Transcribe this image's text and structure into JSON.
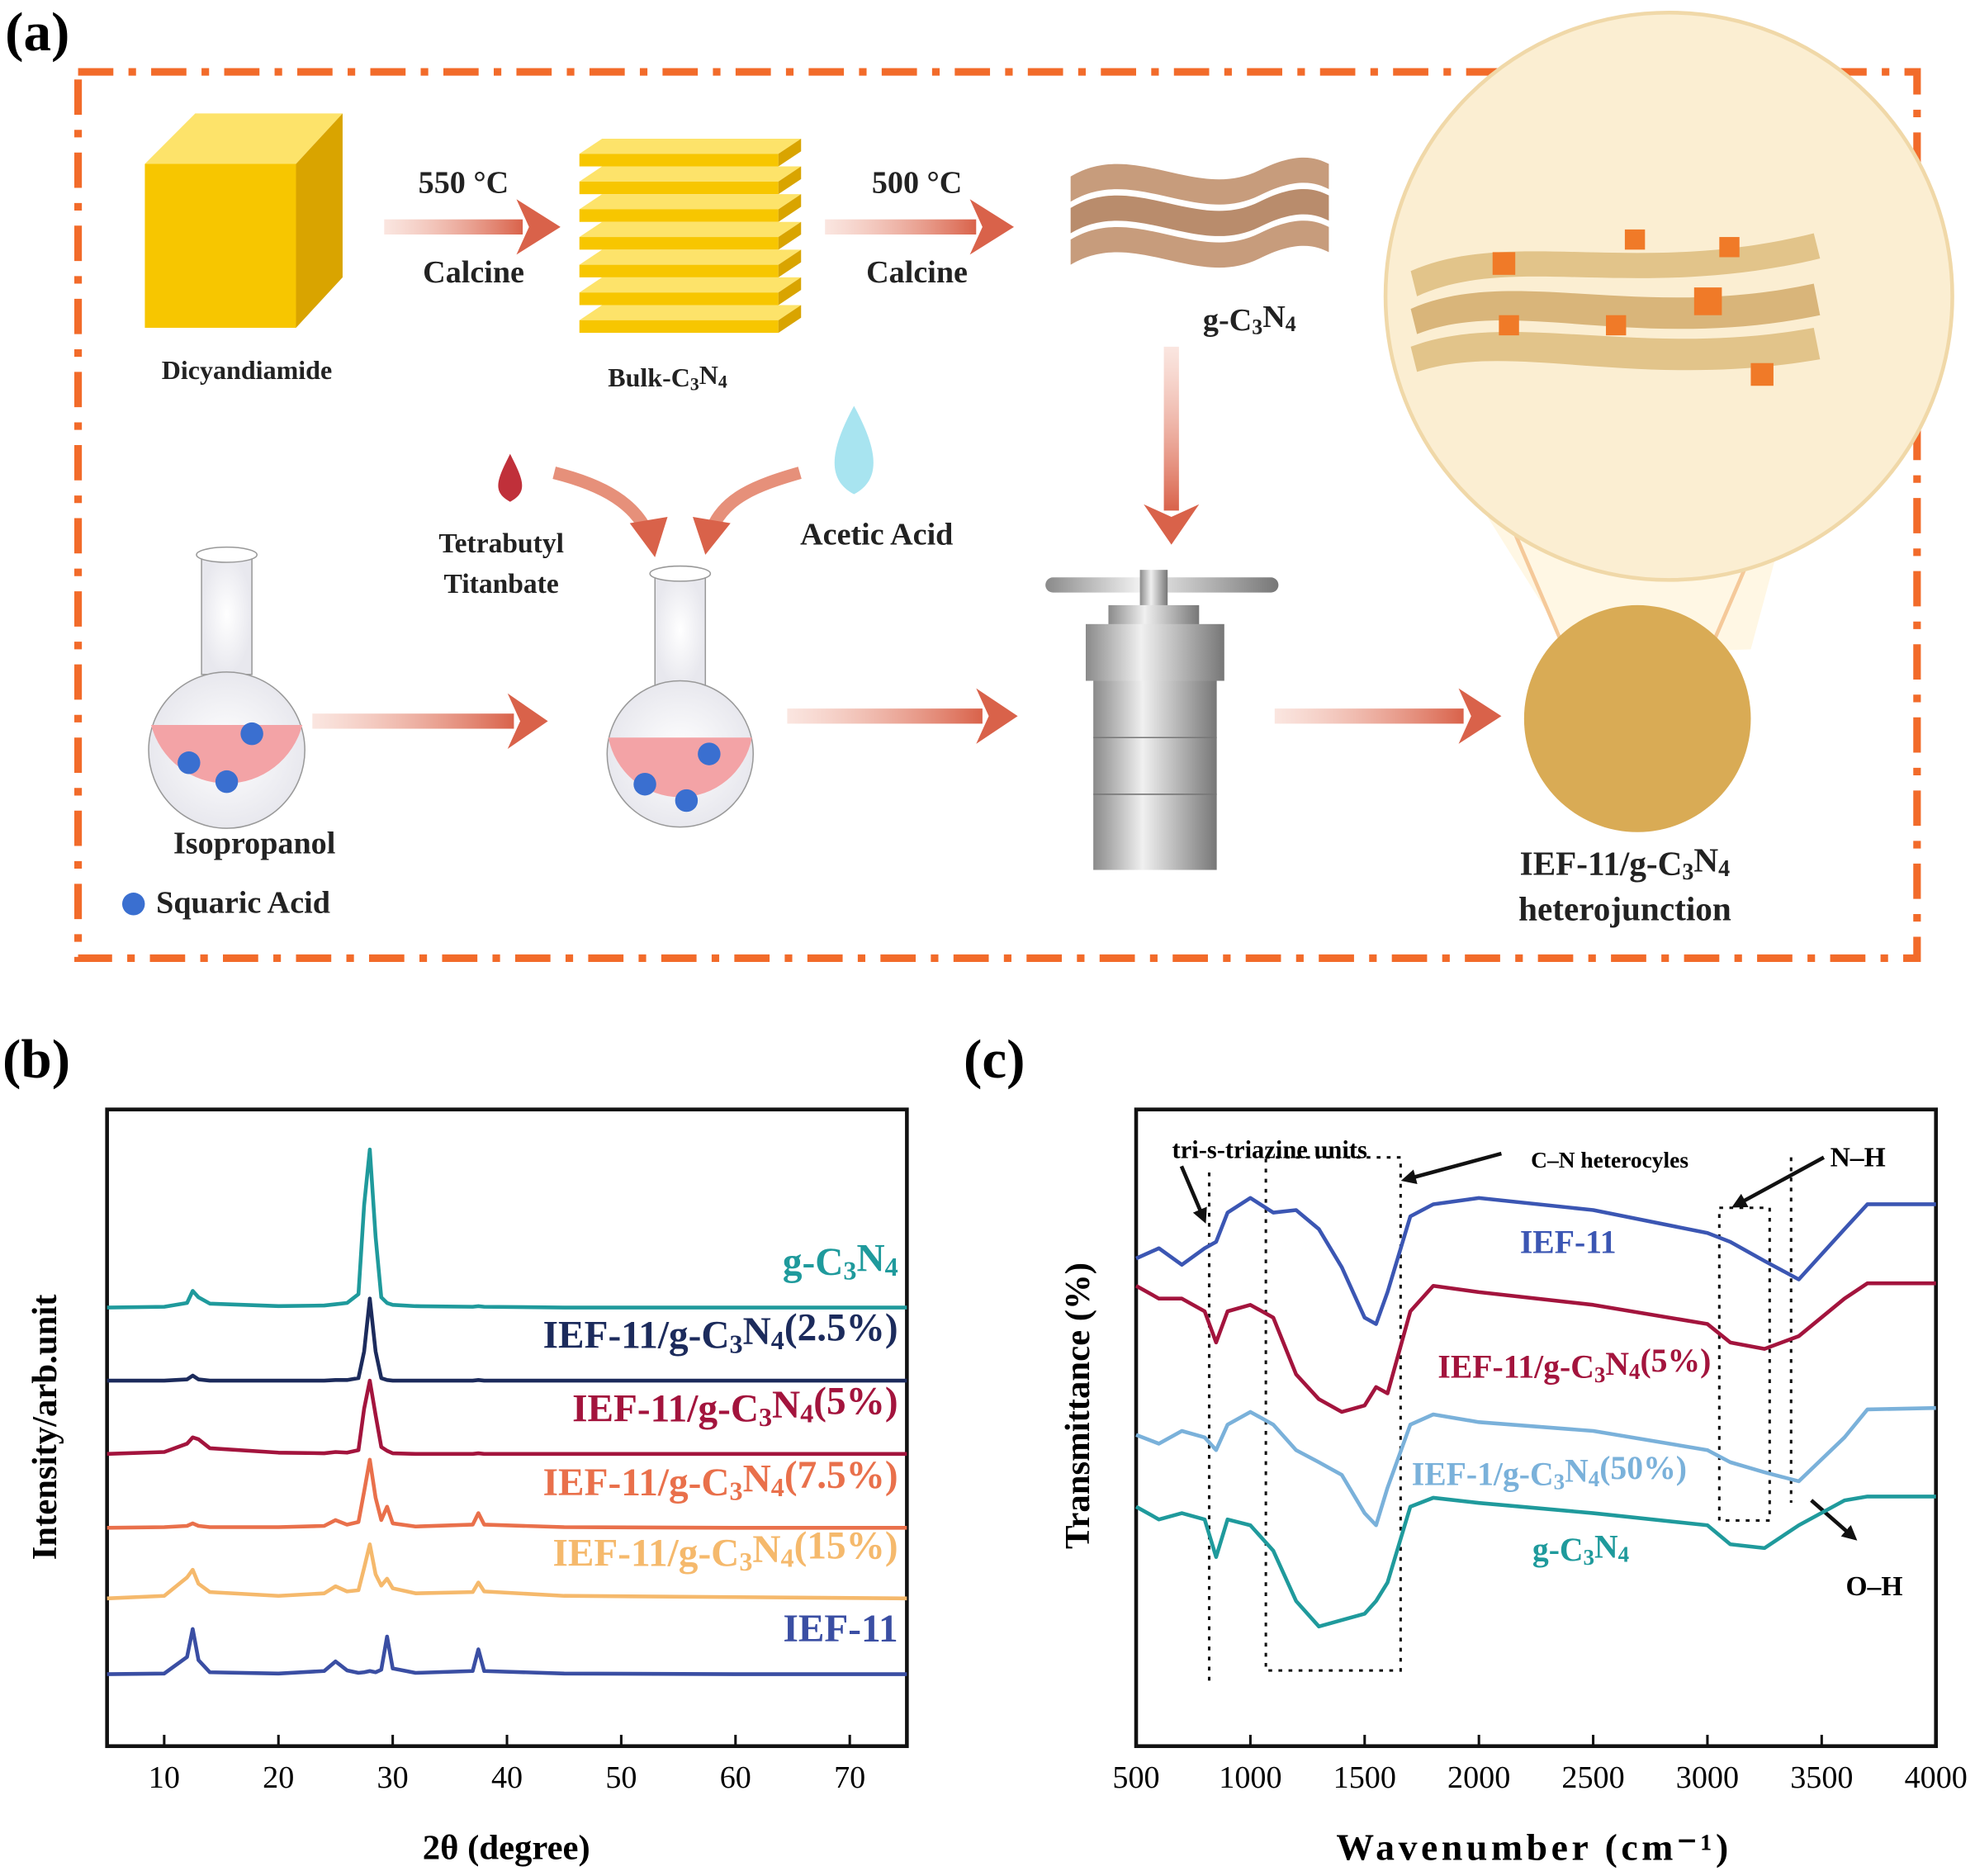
{
  "diagram": {
    "label": "(a)",
    "step1_temp": "550 °C",
    "step1_action": "Calcine",
    "step2_temp": "500 °C",
    "step2_action": "Calcine",
    "dicyandiamide": "Dicyandiamide",
    "bulk": "Bulk-C3N4",
    "gcn": "g-C3N4",
    "tbt_line1": "Tetrabutyl",
    "tbt_line2": "Titanbate",
    "acetic": "Acetic Acid",
    "isopropanol": "Isopropanol",
    "squaric": "Squaric Acid",
    "product_line1": "IEF-11/g-C3N4",
    "product_line2": "heterojunction"
  },
  "chart_data": [
    {
      "type": "line",
      "label": "(b)",
      "x_label": "2θ (degree)",
      "y_label": "Intensity/arb.unit",
      "x": [
        5,
        10,
        12,
        12.5,
        13,
        14,
        20,
        24,
        25,
        26,
        27,
        27.5,
        28,
        28.5,
        29,
        29.5,
        30,
        32,
        37,
        37.5,
        38,
        45,
        60,
        75
      ],
      "series": [
        {
          "name": "g-C3N4",
          "color": "#1f9a9c",
          "values": [
            68.9,
            69.0,
            69.6,
            71.5,
            70.5,
            69.5,
            69.1,
            69.2,
            69.4,
            69.6,
            71.0,
            85.0,
            93.7,
            80.0,
            70.5,
            69.6,
            69.3,
            69.1,
            69.0,
            69.1,
            69.0,
            68.9,
            68.9,
            68.9
          ]
        },
        {
          "name": "IEF-11/g-C3N4(2.5%)",
          "color": "#1c2b5c",
          "values": [
            57.4,
            57.4,
            57.6,
            58.2,
            57.6,
            57.4,
            57.4,
            57.4,
            57.5,
            57.5,
            57.8,
            62.0,
            70.3,
            62.0,
            57.8,
            57.5,
            57.4,
            57.4,
            57.4,
            57.5,
            57.4,
            57.4,
            57.4,
            57.4
          ]
        },
        {
          "name": "IEF-11/g-C3N4(5%)",
          "color": "#a3143d",
          "values": [
            45.9,
            46.2,
            47.5,
            48.5,
            48.2,
            46.8,
            46.1,
            46.0,
            46.2,
            46.1,
            46.5,
            53.0,
            57.4,
            52.0,
            47.0,
            46.4,
            46.0,
            45.9,
            45.9,
            46.0,
            45.9,
            45.9,
            45.9,
            45.9
          ]
        },
        {
          "name": "IEF-11/g-C3N4(7.5%)",
          "color": "#e9704b",
          "values": [
            34.3,
            34.4,
            34.6,
            35.0,
            34.6,
            34.4,
            34.4,
            34.6,
            35.5,
            34.8,
            35.2,
            40.0,
            45.0,
            39.0,
            35.5,
            37.6,
            35.0,
            34.5,
            34.8,
            36.6,
            34.8,
            34.4,
            34.3,
            34.3
          ]
        },
        {
          "name": "IEF-11/g-C3N4(15%)",
          "color": "#f5b96c",
          "values": [
            23.2,
            23.6,
            26.5,
            27.7,
            25.5,
            24.2,
            23.6,
            24.0,
            25.1,
            24.3,
            24.5,
            28.0,
            31.7,
            27.0,
            25.2,
            26.3,
            24.8,
            24.0,
            24.2,
            25.7,
            24.3,
            23.6,
            23.4,
            23.2
          ]
        },
        {
          "name": "IEF-11",
          "color": "#3a4ea3",
          "values": [
            11.3,
            11.4,
            14.0,
            18.4,
            13.5,
            11.6,
            11.4,
            11.8,
            13.3,
            11.9,
            11.5,
            11.6,
            11.8,
            11.6,
            12.0,
            17.2,
            12.2,
            11.5,
            11.8,
            15.2,
            11.8,
            11.4,
            11.3,
            11.3
          ]
        }
      ],
      "xlim": [
        5,
        75
      ],
      "ylim": [
        0,
        100
      ],
      "xticks": [
        10,
        20,
        30,
        40,
        50,
        60,
        70
      ]
    },
    {
      "type": "line",
      "label": "(c)",
      "x_label": "Wavenumber (cm⁻¹)",
      "y_label": "Transmittance (%)",
      "x": [
        500,
        600,
        700,
        800,
        850,
        900,
        1000,
        1100,
        1200,
        1300,
        1400,
        1500,
        1550,
        1600,
        1700,
        1800,
        2000,
        2500,
        3000,
        3100,
        3250,
        3400,
        3600,
        3700,
        4000
      ],
      "series": [
        {
          "name": "IEF-11",
          "color": "#3b56b3",
          "values": [
            76.6,
            78.2,
            75.6,
            78.2,
            79.2,
            83.8,
            86.1,
            83.8,
            84.2,
            81.2,
            75.2,
            67.3,
            66.3,
            71.3,
            83.2,
            85.1,
            86.1,
            84.2,
            80.6,
            79.2,
            76.2,
            73.3,
            81.2,
            85.1,
            85.1
          ]
        },
        {
          "name": "IEF-11/g-C3N4(5%)",
          "color": "#a3143d",
          "values": [
            72.3,
            70.3,
            70.3,
            68.3,
            63.4,
            68.3,
            69.3,
            67.3,
            58.4,
            54.5,
            52.5,
            53.5,
            56.4,
            55.4,
            68.3,
            72.3,
            71.3,
            69.3,
            66.3,
            63.4,
            62.4,
            64.4,
            70.3,
            72.7,
            72.7
          ]
        },
        {
          "name": "IEF-1/g-C3N4(50%)",
          "color": "#7ab1da",
          "values": [
            48.9,
            47.5,
            49.5,
            48.5,
            46.5,
            50.5,
            52.5,
            50.5,
            46.5,
            44.6,
            42.6,
            36.6,
            34.7,
            40.6,
            50.5,
            52.1,
            50.9,
            49.5,
            46.5,
            44.6,
            43.0,
            41.6,
            48.5,
            52.9,
            53.1
          ]
        },
        {
          "name": "g-C3N4",
          "color": "#1f9a9c",
          "values": [
            37.6,
            35.6,
            36.6,
            35.6,
            29.7,
            35.6,
            34.7,
            30.7,
            22.8,
            18.8,
            19.8,
            20.8,
            22.8,
            25.7,
            37.6,
            39.0,
            38.2,
            36.6,
            34.7,
            31.7,
            31.1,
            34.7,
            38.6,
            39.2,
            39.2
          ]
        }
      ],
      "annotations": [
        "tri-s-triazine units",
        "C–N heterocyles",
        "N–H",
        "O–H"
      ],
      "xlim": [
        500,
        4000
      ],
      "ylim": [
        0,
        100
      ],
      "xticks": [
        500,
        1000,
        1500,
        2000,
        2500,
        3000,
        3500,
        4000
      ]
    }
  ]
}
